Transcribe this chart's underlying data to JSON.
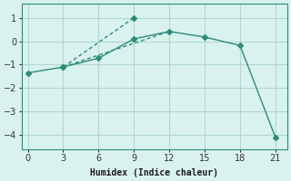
{
  "xlabel": "Humidex (Indice chaleur)",
  "bg_color": "#d9f2ee",
  "grid_color": "#b0d8d0",
  "line_color": "#2e8b7a",
  "xlim": [
    -0.5,
    22
  ],
  "ylim": [
    -4.6,
    1.6
  ],
  "xticks": [
    0,
    3,
    6,
    9,
    12,
    15,
    18,
    21
  ],
  "yticks": [
    -4,
    -3,
    -2,
    -1,
    0,
    1
  ],
  "line1_x": [
    0,
    3,
    6,
    9,
    12,
    15,
    18,
    21
  ],
  "line1_y": [
    -1.35,
    -1.1,
    -0.72,
    0.1,
    0.42,
    0.18,
    -0.18,
    -4.1
  ],
  "line2_x": [
    3,
    9
  ],
  "line2_y": [
    -1.1,
    1.0
  ],
  "line3_x": [
    3,
    12
  ],
  "line3_y": [
    -1.1,
    0.42
  ],
  "marker_size": 3,
  "line_width": 1.0,
  "tick_fontsize": 7,
  "xlabel_fontsize": 7
}
